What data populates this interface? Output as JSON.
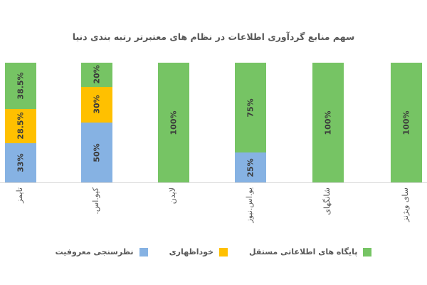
{
  "chart_data": {
    "type": "bar",
    "subtype": "stacked-percent",
    "title": "سهم منابع گردآوری اطلاعات در نظام های معتبرتر رتبه بندی دنیا",
    "categories": [
      "تایمز",
      "کیو.اس.",
      "لایدن",
      "یو.اس.نیوز",
      "شانگهای",
      "سای ویژنز"
    ],
    "series": [
      {
        "name": "نظرسنجی معروفیت",
        "color": "#86B2E3",
        "values": [
          33,
          50,
          0,
          25,
          0,
          0
        ]
      },
      {
        "name": "خوداظهاری",
        "color": "#FFC000",
        "values": [
          28.5,
          30,
          0,
          0,
          0,
          0
        ]
      },
      {
        "name": "پایگاه های اطلاعاتی مستقل",
        "color": "#76C464",
        "values": [
          38.5,
          20,
          100,
          75,
          100,
          100
        ]
      }
    ],
    "data_labels": {
      "format": "percent",
      "rotation": -90,
      "examples": [
        "33%",
        "28.5%",
        "38.5%",
        "50%",
        "30%",
        "20%",
        "100%",
        "25%",
        "75%",
        "100%",
        "100%"
      ]
    },
    "xlabel": "",
    "ylabel": "",
    "ylim": [
      0,
      100
    ],
    "grid": false,
    "legend_position": "bottom",
    "category_label_rotation": -90,
    "colors": {
      "axis_line": "#d9d9d9",
      "title_text": "#595959",
      "label_text": "#3b3b3b"
    }
  }
}
